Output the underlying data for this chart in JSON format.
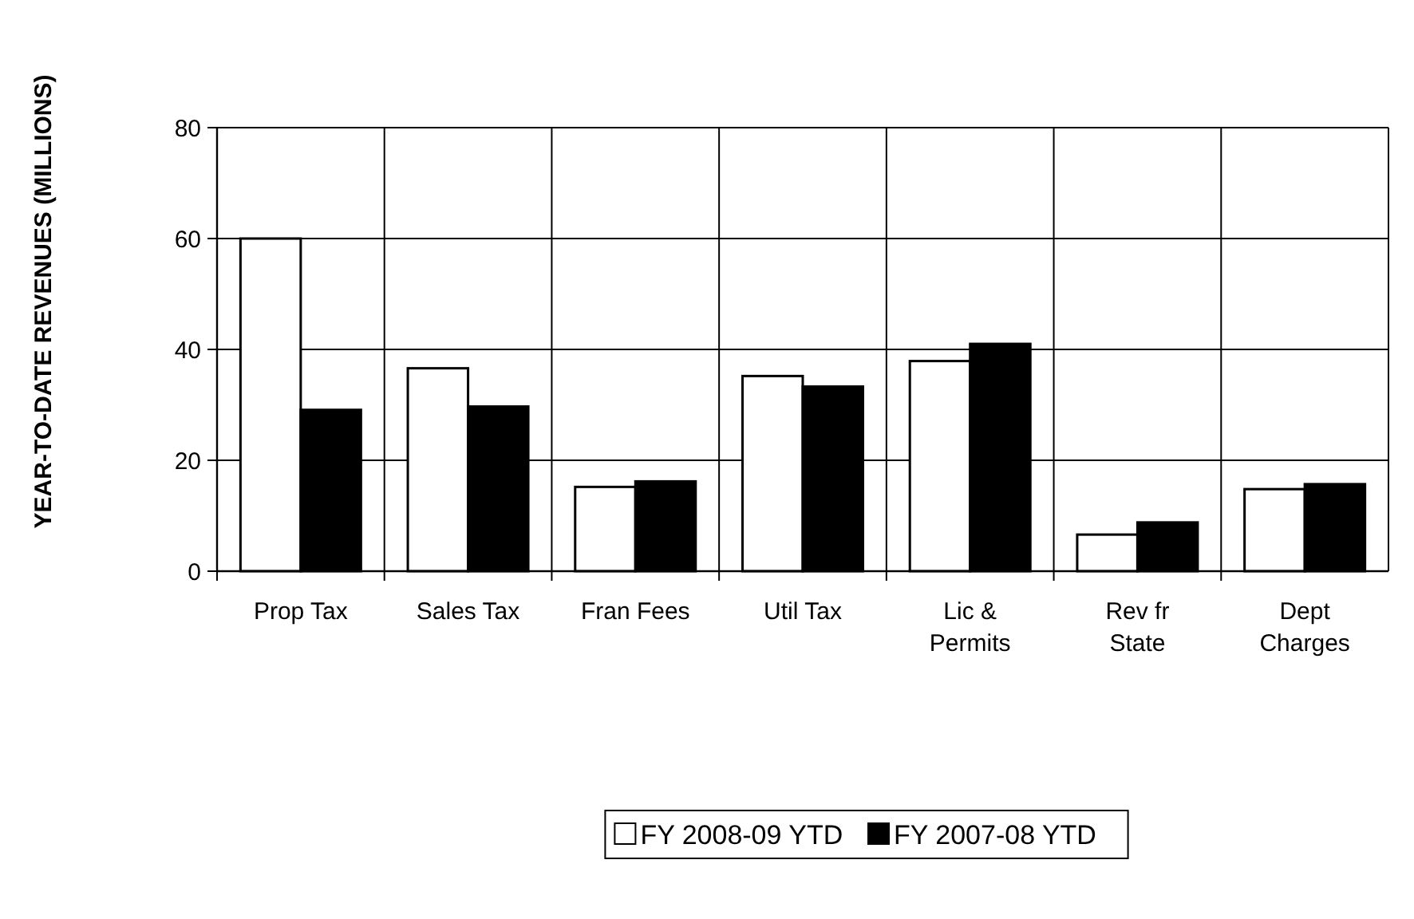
{
  "chart_data": {
    "type": "bar",
    "ylabel": "YEAR-TO-DATE REVENUES (MILLIONS)",
    "categories": [
      "Prop Tax",
      "Sales Tax",
      "Fran Fees",
      "Util Tax",
      "Lic & Permits",
      "Rev fr State",
      "Dept Charges"
    ],
    "series": [
      {
        "name": "FY 2008-09 YTD",
        "color": "#ffffff",
        "values": [
          60,
          36.6,
          15.2,
          35.2,
          37.9,
          6.6,
          14.8
        ]
      },
      {
        "name": "FY 2007-08 YTD",
        "color": "#000000",
        "values": [
          29.1,
          29.7,
          16.2,
          33.3,
          41,
          8.8,
          15.7
        ]
      }
    ],
    "ylim": [
      0,
      80
    ],
    "yticks": [
      0,
      20,
      40,
      60,
      80
    ],
    "grid": true,
    "legend": "bottom"
  }
}
